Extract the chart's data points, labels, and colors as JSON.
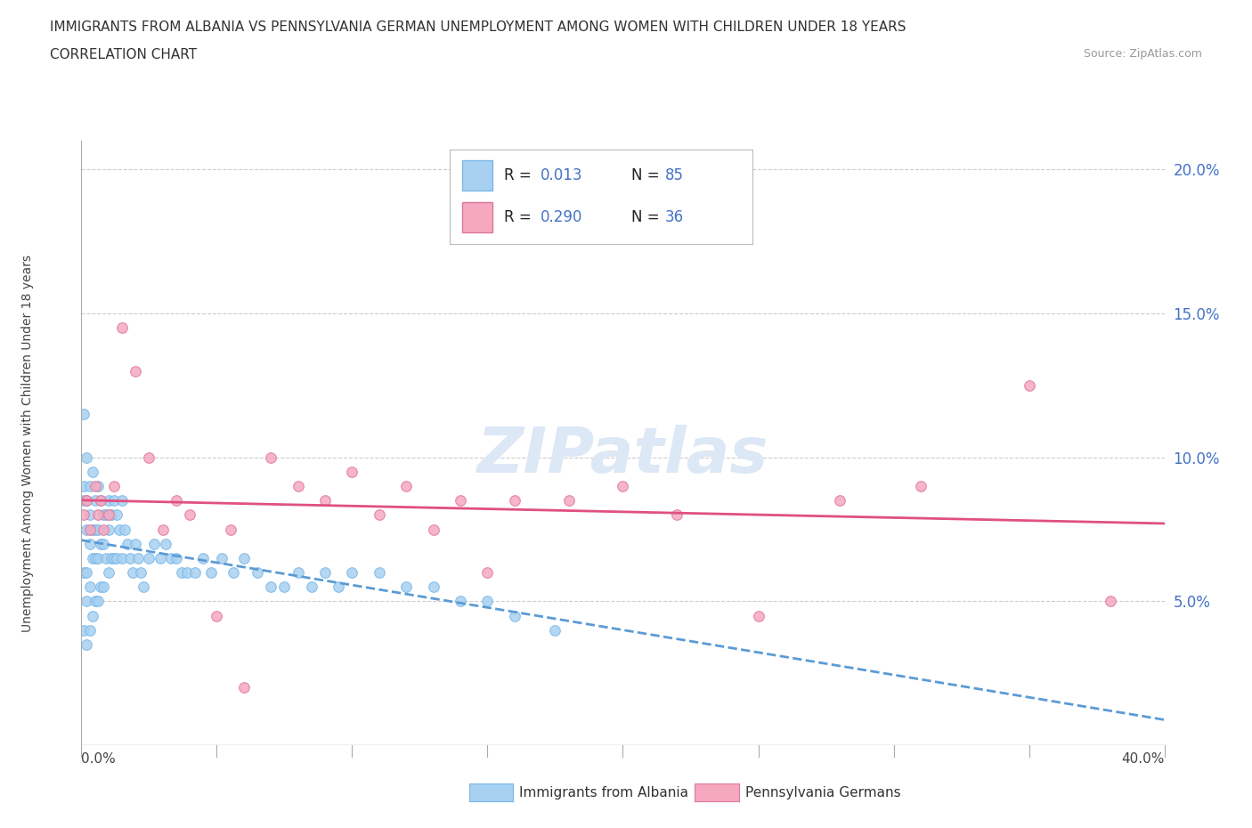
{
  "title_line1": "IMMIGRANTS FROM ALBANIA VS PENNSYLVANIA GERMAN UNEMPLOYMENT AMONG WOMEN WITH CHILDREN UNDER 18 YEARS",
  "title_line2": "CORRELATION CHART",
  "source_text": "Source: ZipAtlas.com",
  "ylabel": "Unemployment Among Women with Children Under 18 years",
  "xlim": [
    0.0,
    0.4
  ],
  "ylim": [
    0.0,
    0.21
  ],
  "yticks": [
    0.05,
    0.1,
    0.15,
    0.2
  ],
  "ytick_labels": [
    "5.0%",
    "10.0%",
    "15.0%",
    "20.0%"
  ],
  "color_albania": "#a8d0f0",
  "color_albania_edge": "#7ab8e8",
  "color_pg": "#f5a8c0",
  "color_pg_edge": "#e07898",
  "color_trendline_albania": "#5b9bd5",
  "color_trendline_pg": "#e05080",
  "watermark_color": "#dce8f5",
  "legend_text_color": "#4472c4",
  "albania_x": [
    0.001,
    0.001,
    0.001,
    0.001,
    0.001,
    0.002,
    0.002,
    0.002,
    0.002,
    0.002,
    0.002,
    0.003,
    0.003,
    0.003,
    0.003,
    0.003,
    0.004,
    0.004,
    0.004,
    0.004,
    0.005,
    0.005,
    0.005,
    0.005,
    0.006,
    0.006,
    0.006,
    0.006,
    0.007,
    0.007,
    0.007,
    0.008,
    0.008,
    0.008,
    0.009,
    0.009,
    0.01,
    0.01,
    0.01,
    0.011,
    0.011,
    0.012,
    0.012,
    0.013,
    0.013,
    0.014,
    0.015,
    0.015,
    0.016,
    0.017,
    0.018,
    0.019,
    0.02,
    0.021,
    0.022,
    0.023,
    0.025,
    0.027,
    0.029,
    0.031,
    0.033,
    0.035,
    0.037,
    0.039,
    0.042,
    0.045,
    0.048,
    0.052,
    0.056,
    0.06,
    0.065,
    0.07,
    0.075,
    0.08,
    0.085,
    0.09,
    0.095,
    0.1,
    0.11,
    0.12,
    0.13,
    0.14,
    0.15,
    0.16,
    0.175
  ],
  "albania_y": [
    0.115,
    0.09,
    0.085,
    0.06,
    0.04,
    0.1,
    0.085,
    0.075,
    0.06,
    0.05,
    0.035,
    0.09,
    0.08,
    0.07,
    0.055,
    0.04,
    0.095,
    0.075,
    0.065,
    0.045,
    0.085,
    0.075,
    0.065,
    0.05,
    0.09,
    0.075,
    0.065,
    0.05,
    0.085,
    0.07,
    0.055,
    0.08,
    0.07,
    0.055,
    0.08,
    0.065,
    0.085,
    0.075,
    0.06,
    0.08,
    0.065,
    0.085,
    0.065,
    0.08,
    0.065,
    0.075,
    0.085,
    0.065,
    0.075,
    0.07,
    0.065,
    0.06,
    0.07,
    0.065,
    0.06,
    0.055,
    0.065,
    0.07,
    0.065,
    0.07,
    0.065,
    0.065,
    0.06,
    0.06,
    0.06,
    0.065,
    0.06,
    0.065,
    0.06,
    0.065,
    0.06,
    0.055,
    0.055,
    0.06,
    0.055,
    0.06,
    0.055,
    0.06,
    0.06,
    0.055,
    0.055,
    0.05,
    0.05,
    0.045,
    0.04
  ],
  "pg_x": [
    0.001,
    0.002,
    0.003,
    0.005,
    0.006,
    0.007,
    0.008,
    0.01,
    0.012,
    0.015,
    0.02,
    0.025,
    0.03,
    0.035,
    0.04,
    0.05,
    0.055,
    0.06,
    0.07,
    0.08,
    0.09,
    0.1,
    0.11,
    0.12,
    0.13,
    0.14,
    0.15,
    0.16,
    0.18,
    0.2,
    0.22,
    0.25,
    0.28,
    0.31,
    0.35,
    0.38
  ],
  "pg_y": [
    0.08,
    0.085,
    0.075,
    0.09,
    0.08,
    0.085,
    0.075,
    0.08,
    0.09,
    0.145,
    0.13,
    0.1,
    0.075,
    0.085,
    0.08,
    0.045,
    0.075,
    0.02,
    0.1,
    0.09,
    0.085,
    0.095,
    0.08,
    0.09,
    0.075,
    0.085,
    0.06,
    0.085,
    0.085,
    0.09,
    0.08,
    0.045,
    0.085,
    0.09,
    0.125,
    0.05
  ]
}
